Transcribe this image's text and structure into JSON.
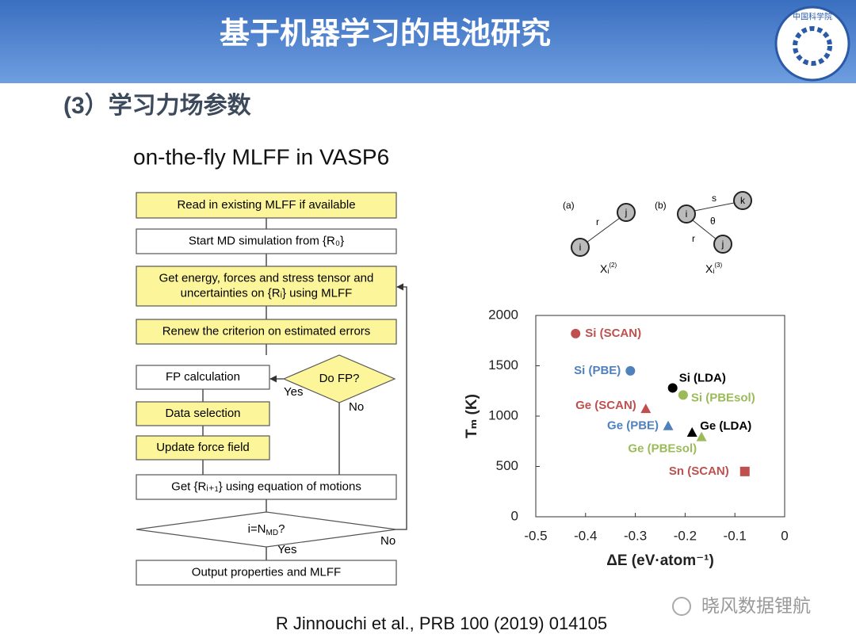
{
  "header": {
    "title": "基于机器学习的电池研究",
    "logo_text": "中国科学院"
  },
  "section_title": "(3）学习力场参数",
  "subtitle": "on-the-fly MLFF in VASP6",
  "flowchart": {
    "nodes": [
      {
        "lines": [
          "Read in existing MLFF if available"
        ]
      },
      {
        "lines": [
          "Start MD simulation from {R₀}"
        ]
      },
      {
        "lines": [
          "Get energy, forces  and stress tensor and",
          "uncertainties on {Rᵢ} using MLFF"
        ]
      },
      {
        "lines": [
          "Renew the criterion on estimated errors"
        ]
      },
      {
        "lines": [
          "Do FP?"
        ]
      },
      {
        "lines": [
          "FP calculation"
        ]
      },
      {
        "lines": [
          "Data selection"
        ]
      },
      {
        "lines": [
          "Update force field"
        ]
      },
      {
        "lines": [
          "Get {Rᵢ₊₁} using equation of motions"
        ]
      },
      {
        "parts": [
          "i=N",
          "MD",
          "?"
        ]
      },
      {
        "lines": [
          "Output properties and MLFF"
        ]
      }
    ],
    "edge_labels": [
      "Yes",
      "No",
      "No",
      "Yes"
    ]
  },
  "descriptor_diagram": {
    "panel_a": {
      "tag": "(a)",
      "node_i": "i",
      "node_j": "j",
      "edge": "r",
      "descriptor": [
        "X",
        "i",
        "(2)"
      ]
    },
    "panel_b": {
      "tag": "(b)",
      "node_i": "i",
      "node_j": "j",
      "node_k": "k",
      "edge_r": "r",
      "edge_s": "s",
      "angle": "θ",
      "descriptor": [
        "X",
        "i",
        "(3)"
      ]
    }
  },
  "chart_data": {
    "type": "scatter",
    "x_label": "ΔE (eV·atom⁻¹)",
    "y_label": "Tₘ (K)",
    "xlim": [
      -0.5,
      0
    ],
    "xticks": [
      -0.5,
      -0.4,
      -0.3,
      -0.2,
      -0.1,
      0
    ],
    "ylim": [
      0,
      2000
    ],
    "yticks": [
      0,
      500,
      1000,
      1500,
      2000
    ],
    "series": [
      {
        "name": "Si (SCAN)",
        "color": "#c0504d",
        "marker": "circle",
        "x": [
          -0.42
        ],
        "values": [
          1820
        ]
      },
      {
        "name": "Si (PBE)",
        "color": "#4f81bd",
        "marker": "circle",
        "x": [
          -0.31
        ],
        "values": [
          1450
        ]
      },
      {
        "name": "Si (LDA)",
        "color": "#000000",
        "marker": "circle",
        "x": [
          -0.225
        ],
        "values": [
          1280
        ]
      },
      {
        "name": "Si (PBEsol)",
        "color": "#9bbb59",
        "marker": "circle",
        "x": [
          -0.204
        ],
        "values": [
          1210
        ]
      },
      {
        "name": "Ge (SCAN)",
        "color": "#c0504d",
        "marker": "triangle",
        "x": [
          -0.279
        ],
        "values": [
          1070
        ]
      },
      {
        "name": "Ge (PBE)",
        "color": "#4f81bd",
        "marker": "triangle",
        "x": [
          -0.234
        ],
        "values": [
          900
        ]
      },
      {
        "name": "Ge (LDA)",
        "color": "#000000",
        "marker": "triangle",
        "x": [
          -0.186
        ],
        "values": [
          835
        ]
      },
      {
        "name": "Ge (PBEsol)",
        "color": "#9bbb59",
        "marker": "triangle",
        "x": [
          -0.167
        ],
        "values": [
          790
        ]
      },
      {
        "name": "Sn (SCAN)",
        "color": "#c0504d",
        "marker": "square",
        "x": [
          -0.08
        ],
        "values": [
          450
        ]
      }
    ]
  },
  "citation": "R Jinnouchi et al., PRB 100 (2019) 014105",
  "watermark": "晓风数据锂航"
}
